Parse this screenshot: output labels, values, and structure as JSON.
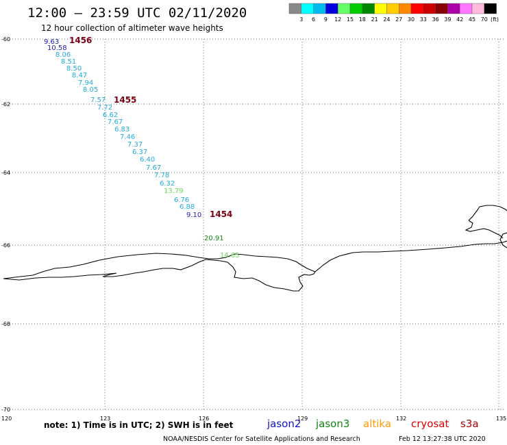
{
  "header": {
    "title": "12:00 – 23:59 UTC 02/11/2020",
    "subtitle": "12 hour collection of altimeter wave heights"
  },
  "color_scale": {
    "labels": [
      "3",
      "6",
      "9",
      "12",
      "15",
      "18",
      "21",
      "24",
      "27",
      "30",
      "33",
      "36",
      "39",
      "42",
      "45",
      "70"
    ],
    "unit": "(ft)",
    "colors": [
      "#888888",
      "#00ffff",
      "#00bbee",
      "#0000dd",
      "#66ff66",
      "#00cc00",
      "#008800",
      "#ffff00",
      "#ffcc00",
      "#ff8800",
      "#ff0000",
      "#cc0000",
      "#880000",
      "#aa00aa",
      "#ff77ff",
      "#ffbbdd",
      "#000000"
    ]
  },
  "axes": {
    "lat_labels": [
      "-60",
      "-62",
      "-64",
      "-66",
      "-68",
      "-70"
    ],
    "lon_labels": [
      "120",
      "123",
      "126",
      "129",
      "132",
      "135"
    ]
  },
  "observations": [
    {
      "v": "9.63",
      "c": "#1a1aaa"
    },
    {
      "v": "10.58",
      "c": "#1a1aaa"
    },
    {
      "v": "8.06",
      "c": "#22aadd"
    },
    {
      "v": "8.51",
      "c": "#22aadd"
    },
    {
      "v": "8.50",
      "c": "#22aadd"
    },
    {
      "v": "8.47",
      "c": "#22aadd"
    },
    {
      "v": "7.94",
      "c": "#22aadd"
    },
    {
      "v": "8.05",
      "c": "#22aadd"
    },
    {
      "v": "7.57",
      "c": "#22aadd"
    },
    {
      "v": "7.72",
      "c": "#22aadd"
    },
    {
      "v": "6.62",
      "c": "#22aadd"
    },
    {
      "v": "7.67",
      "c": "#22aadd"
    },
    {
      "v": "6.83",
      "c": "#22aadd"
    },
    {
      "v": "7.46",
      "c": "#22aadd"
    },
    {
      "v": "7.37",
      "c": "#22aadd"
    },
    {
      "v": "6.37",
      "c": "#22aadd"
    },
    {
      "v": "6.40",
      "c": "#22aadd"
    },
    {
      "v": "7.67",
      "c": "#22aadd"
    },
    {
      "v": "7.78",
      "c": "#22aadd"
    },
    {
      "v": "6.32",
      "c": "#22aadd"
    },
    {
      "v": "13.79",
      "c": "#66dd55"
    },
    {
      "v": "6.76",
      "c": "#22aadd"
    },
    {
      "v": "6.88",
      "c": "#22aadd"
    },
    {
      "v": "9.10",
      "c": "#1a1aaa"
    },
    {
      "v": "20.91",
      "c": "#118811"
    },
    {
      "v": "14.65",
      "c": "#66dd55"
    }
  ],
  "time_labels": [
    "1456",
    "1455",
    "1454"
  ],
  "footer": {
    "note": "note:  1) Time is in UTC; 2) SWH is in feet",
    "satellites": [
      {
        "name": "jason2",
        "color": "#1111cc"
      },
      {
        "name": "jason3",
        "color": "#118811"
      },
      {
        "name": "altika",
        "color": "#ff9900"
      },
      {
        "name": "cryosat",
        "color": "#dd0000"
      },
      {
        "name": "s3a",
        "color": "#aa0000"
      }
    ],
    "credit": "NOAA/NESDIS Center for Satellite Applications and Research",
    "generated": "Feb 12 13:27:38 UTC 2020"
  }
}
